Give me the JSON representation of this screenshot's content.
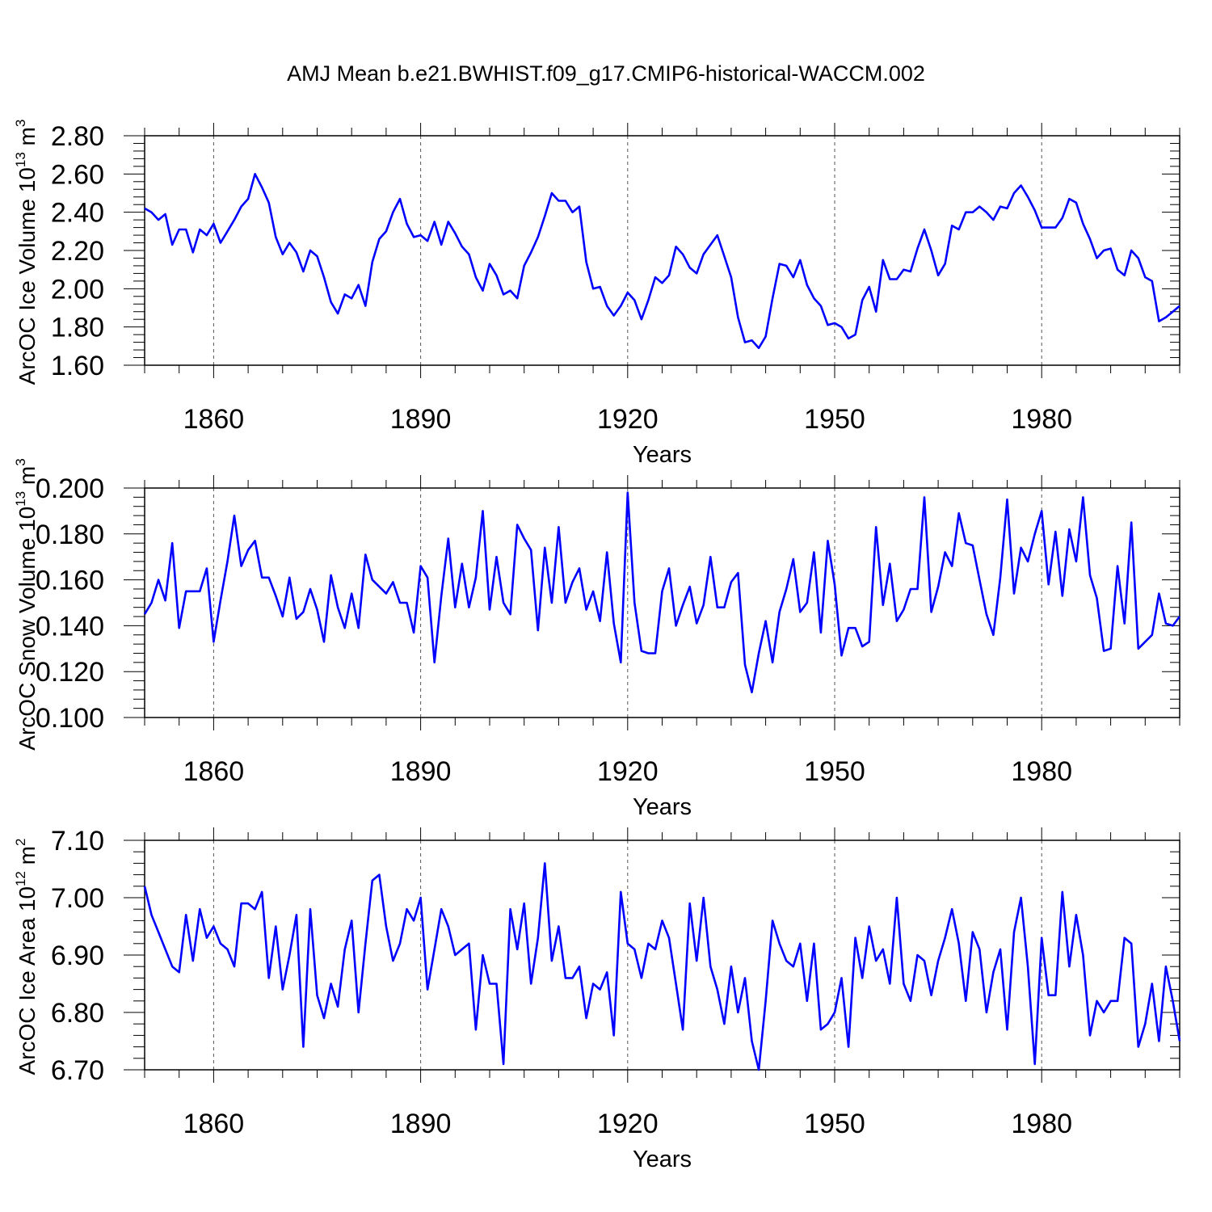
{
  "title": "AMJ Mean b.e21.BWHIST.f09_g17.CMIP6-historical-WACCM.002",
  "colors": {
    "line": "#0000ff",
    "axis": "#000000"
  },
  "chart_data": [
    {
      "type": "line",
      "ylabel_main": "ArcOC Ice Volume 10",
      "ylabel_exp": "13",
      "ylabel_unit": " m",
      "ylabel_unit_exp": "3",
      "xlabel": "Years",
      "xlim": [
        1850,
        2000
      ],
      "ylim": [
        1.6,
        2.8
      ],
      "yticks": [
        1.6,
        1.8,
        2.0,
        2.2,
        2.4,
        2.6,
        2.8
      ],
      "ytick_labels": [
        "1.60",
        "1.80",
        "2.00",
        "2.20",
        "2.40",
        "2.60",
        "2.80"
      ],
      "xticks": [
        1860,
        1890,
        1920,
        1950,
        1980
      ],
      "xtick_labels": [
        "1860",
        "1890",
        "1920",
        "1950",
        "1980"
      ],
      "x_start": 1850,
      "values": [
        2.42,
        2.4,
        2.36,
        2.39,
        2.23,
        2.31,
        2.31,
        2.19,
        2.31,
        2.28,
        2.34,
        2.24,
        2.3,
        2.36,
        2.43,
        2.47,
        2.6,
        2.53,
        2.45,
        2.27,
        2.18,
        2.24,
        2.19,
        2.09,
        2.2,
        2.17,
        2.06,
        1.93,
        1.87,
        1.97,
        1.95,
        2.02,
        1.91,
        2.14,
        2.26,
        2.3,
        2.4,
        2.47,
        2.34,
        2.27,
        2.28,
        2.25,
        2.35,
        2.23,
        2.35,
        2.29,
        2.22,
        2.18,
        2.06,
        1.99,
        2.13,
        2.07,
        1.97,
        1.99,
        1.95,
        2.12,
        2.19,
        2.27,
        2.38,
        2.5,
        2.46,
        2.46,
        2.4,
        2.43,
        2.14,
        2.0,
        2.01,
        1.91,
        1.86,
        1.91,
        1.98,
        1.94,
        1.84,
        1.94,
        2.06,
        2.03,
        2.07,
        2.22,
        2.18,
        2.11,
        2.08,
        2.18,
        2.23,
        2.28,
        2.17,
        2.06,
        1.85,
        1.72,
        1.73,
        1.69,
        1.75,
        1.95,
        2.13,
        2.12,
        2.06,
        2.15,
        2.02,
        1.95,
        1.91,
        1.81,
        1.82,
        1.8,
        1.74,
        1.76,
        1.94,
        2.01,
        1.88,
        2.15,
        2.05,
        2.05,
        2.1,
        2.09,
        2.21,
        2.31,
        2.2,
        2.07,
        2.13,
        2.33,
        2.31,
        2.4,
        2.4,
        2.43,
        2.4,
        2.36,
        2.43,
        2.42,
        2.5,
        2.54,
        2.48,
        2.41,
        2.32,
        2.32,
        2.32,
        2.37,
        2.47,
        2.45,
        2.34,
        2.26,
        2.16,
        2.2,
        2.21,
        2.1,
        2.07,
        2.2,
        2.16,
        2.06,
        2.04,
        1.83,
        1.85,
        1.88,
        1.91
      ]
    },
    {
      "type": "line",
      "ylabel_main": "ArcOC Snow Volume 10",
      "ylabel_exp": "13",
      "ylabel_unit": " m",
      "ylabel_unit_exp": "3",
      "xlabel": "Years",
      "xlim": [
        1850,
        2000
      ],
      "ylim": [
        0.1,
        0.2
      ],
      "yticks": [
        0.1,
        0.12,
        0.14,
        0.16,
        0.18,
        0.2
      ],
      "ytick_labels": [
        "0.100",
        "0.120",
        "0.140",
        "0.160",
        "0.180",
        "0.200"
      ],
      "xticks": [
        1860,
        1890,
        1920,
        1950,
        1980
      ],
      "xtick_labels": [
        "1860",
        "1890",
        "1920",
        "1950",
        "1980"
      ],
      "x_start": 1850,
      "values": [
        0.145,
        0.15,
        0.16,
        0.151,
        0.176,
        0.139,
        0.155,
        0.155,
        0.155,
        0.165,
        0.133,
        0.151,
        0.168,
        0.188,
        0.166,
        0.173,
        0.177,
        0.161,
        0.161,
        0.153,
        0.144,
        0.161,
        0.143,
        0.146,
        0.156,
        0.147,
        0.133,
        0.162,
        0.148,
        0.139,
        0.154,
        0.139,
        0.171,
        0.16,
        0.157,
        0.154,
        0.159,
        0.15,
        0.15,
        0.137,
        0.166,
        0.161,
        0.124,
        0.153,
        0.178,
        0.148,
        0.167,
        0.148,
        0.161,
        0.19,
        0.147,
        0.17,
        0.15,
        0.145,
        0.184,
        0.178,
        0.173,
        0.138,
        0.174,
        0.15,
        0.183,
        0.15,
        0.159,
        0.165,
        0.147,
        0.155,
        0.142,
        0.172,
        0.141,
        0.124,
        0.198,
        0.15,
        0.129,
        0.128,
        0.128,
        0.155,
        0.165,
        0.14,
        0.149,
        0.157,
        0.141,
        0.149,
        0.17,
        0.148,
        0.148,
        0.159,
        0.163,
        0.123,
        0.111,
        0.128,
        0.142,
        0.124,
        0.146,
        0.156,
        0.169,
        0.146,
        0.15,
        0.172,
        0.137,
        0.177,
        0.158,
        0.127,
        0.139,
        0.139,
        0.131,
        0.133,
        0.183,
        0.149,
        0.167,
        0.142,
        0.147,
        0.156,
        0.156,
        0.196,
        0.146,
        0.157,
        0.172,
        0.166,
        0.189,
        0.176,
        0.175,
        0.16,
        0.145,
        0.136,
        0.161,
        0.195,
        0.154,
        0.174,
        0.168,
        0.18,
        0.19,
        0.158,
        0.181,
        0.153,
        0.182,
        0.168,
        0.196,
        0.162,
        0.152,
        0.129,
        0.13,
        0.166,
        0.141,
        0.185,
        0.13,
        0.133,
        0.136,
        0.154,
        0.141,
        0.14,
        0.144
      ]
    },
    {
      "type": "line",
      "ylabel_main": "ArcOC Ice Area 10",
      "ylabel_exp": "12",
      "ylabel_unit": " m",
      "ylabel_unit_exp": "2",
      "xlabel": "Years",
      "xlim": [
        1850,
        2000
      ],
      "ylim": [
        6.7,
        7.1
      ],
      "yticks": [
        6.7,
        6.8,
        6.9,
        7.0,
        7.1
      ],
      "ytick_labels": [
        "6.70",
        "6.80",
        "6.90",
        "7.00",
        "7.10"
      ],
      "xticks": [
        1860,
        1890,
        1920,
        1950,
        1980
      ],
      "xtick_labels": [
        "1860",
        "1890",
        "1920",
        "1950",
        "1980"
      ],
      "x_start": 1850,
      "values": [
        7.02,
        6.97,
        6.94,
        6.91,
        6.88,
        6.87,
        6.97,
        6.89,
        6.98,
        6.93,
        6.95,
        6.92,
        6.91,
        6.88,
        6.99,
        6.99,
        6.98,
        7.01,
        6.86,
        6.95,
        6.84,
        6.9,
        6.97,
        6.74,
        6.98,
        6.83,
        6.79,
        6.85,
        6.81,
        6.91,
        6.96,
        6.8,
        6.92,
        7.03,
        7.04,
        6.95,
        6.89,
        6.92,
        6.98,
        6.96,
        7.0,
        6.84,
        6.91,
        6.98,
        6.95,
        6.9,
        6.91,
        6.92,
        6.77,
        6.9,
        6.85,
        6.85,
        6.71,
        6.98,
        6.91,
        6.99,
        6.85,
        6.93,
        7.06,
        6.89,
        6.95,
        6.86,
        6.86,
        6.88,
        6.79,
        6.85,
        6.84,
        6.87,
        6.76,
        7.01,
        6.92,
        6.91,
        6.86,
        6.92,
        6.91,
        6.96,
        6.93,
        6.85,
        6.77,
        6.99,
        6.89,
        7.0,
        6.88,
        6.84,
        6.78,
        6.88,
        6.8,
        6.86,
        6.75,
        6.7,
        6.82,
        6.96,
        6.92,
        6.89,
        6.88,
        6.92,
        6.82,
        6.92,
        6.77,
        6.78,
        6.8,
        6.86,
        6.74,
        6.93,
        6.86,
        6.95,
        6.89,
        6.91,
        6.85,
        7.0,
        6.85,
        6.82,
        6.9,
        6.89,
        6.83,
        6.89,
        6.93,
        6.98,
        6.92,
        6.82,
        6.94,
        6.91,
        6.8,
        6.87,
        6.91,
        6.77,
        6.94,
        7.0,
        6.88,
        6.71,
        6.93,
        6.83,
        6.83,
        7.01,
        6.88,
        6.97,
        6.9,
        6.76,
        6.82,
        6.8,
        6.82,
        6.82,
        6.93,
        6.92,
        6.74,
        6.78,
        6.85,
        6.75,
        6.88,
        6.82,
        6.75
      ]
    }
  ]
}
